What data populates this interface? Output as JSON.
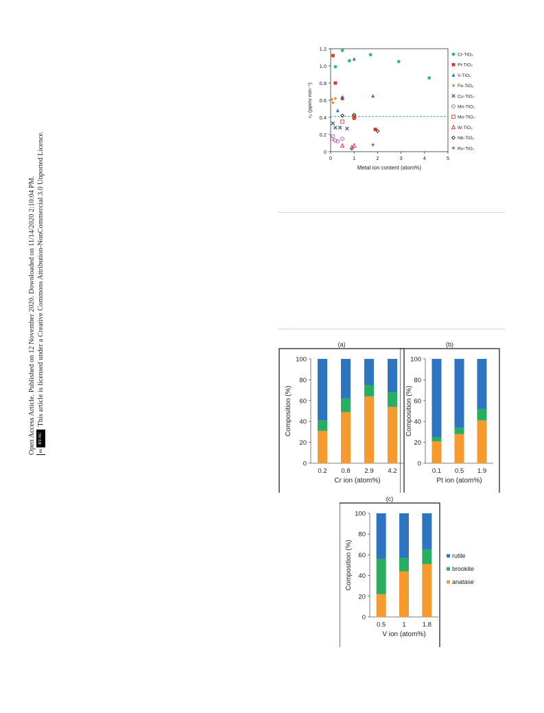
{
  "margin": {
    "line1": "Open Access Article. Published on 12 November 2020. Downloaded on 11/14/2020 2:10:04 PM.",
    "line2": "This article is licensed under a Creative Commons Attribution-NonCommercial 3.0 Unported Licence.",
    "badge_cc": "cc",
    "badge_by": "BY-NC"
  },
  "chart_data": [
    {
      "type": "scatter",
      "xlabel": "Metal ion content (atom%)",
      "ylabel": "r₀ (ppmv min⁻¹)",
      "xlim": [
        0,
        5
      ],
      "ylim": [
        0,
        1.2
      ],
      "xticks": [
        "0",
        "1",
        "2",
        "3",
        "4",
        "5"
      ],
      "yticks": [
        "0",
        "0.2",
        "0.4",
        "0.6",
        "0.8",
        "1.0",
        "1.2"
      ],
      "reference_line": 0.41,
      "legend_position": "right",
      "series": [
        {
          "name": "Cr-TiO₂",
          "color": "#2dbd74",
          "marker": "circle",
          "points": [
            [
              0.2,
              0.99
            ],
            [
              0.5,
              1.18
            ],
            [
              0.8,
              1.06
            ],
            [
              1.7,
              1.13
            ],
            [
              2.9,
              1.05
            ],
            [
              4.2,
              0.86
            ]
          ]
        },
        {
          "name": "Pt-TiO₂",
          "color": "#e8312a",
          "marker": "square",
          "points": [
            [
              0.1,
              1.12
            ],
            [
              0.2,
              0.8
            ],
            [
              0.5,
              0.62
            ],
            [
              1.0,
              0.39
            ],
            [
              1.9,
              0.26
            ]
          ]
        },
        {
          "name": "V-TiO₂",
          "color": "#2f6bbf",
          "marker": "triangle",
          "points": [
            [
              0.3,
              0.48
            ],
            [
              0.5,
              0.64
            ],
            [
              1.0,
              1.08
            ],
            [
              1.8,
              0.65
            ]
          ]
        },
        {
          "name": "Fe-TiO₂",
          "color": "#f18a2a",
          "marker": "diamond",
          "points": [
            [
              0.05,
              0.61
            ],
            [
              0.1,
              0.57
            ],
            [
              0.2,
              0.62
            ]
          ]
        },
        {
          "name": "Cu-TiO₂",
          "color": "#3a5578",
          "marker": "cross",
          "points": [
            [
              0.1,
              0.33
            ],
            [
              0.2,
              0.28
            ],
            [
              0.4,
              0.28
            ],
            [
              0.7,
              0.27
            ]
          ]
        },
        {
          "name": "Mn-TiO₂",
          "color": "#b15ac4",
          "marker": "circle-open",
          "points": [
            [
              0.05,
              0.15
            ],
            [
              0.1,
              0.18
            ],
            [
              0.2,
              0.13
            ],
            [
              0.3,
              0.12
            ],
            [
              0.5,
              0.15
            ]
          ]
        },
        {
          "name": "Mo-TiO₂",
          "color": "#d9541e",
          "marker": "square-open",
          "points": [
            [
              0.5,
              0.35
            ],
            [
              1.0,
              0.41
            ]
          ]
        },
        {
          "name": "W-TiO₂",
          "color": "#e8312a",
          "marker": "triangle-open",
          "points": [
            [
              0.5,
              0.07
            ],
            [
              0.9,
              0.05
            ],
            [
              1.0,
              0.07
            ]
          ]
        },
        {
          "name": "Nb-TiO₂",
          "color": "#333333",
          "marker": "diamond-open",
          "points": [
            [
              0.5,
              0.42
            ],
            [
              1.0,
              0.43
            ],
            [
              2.0,
              0.24
            ]
          ]
        },
        {
          "name": "Ru-TiO₂",
          "color": "#6a4fa3",
          "marker": "plus",
          "points": [
            [
              0.9,
              0.03
            ],
            [
              1.8,
              0.08
            ]
          ]
        }
      ]
    },
    {
      "type": "bar",
      "subtype": "stacked",
      "title": "(a)",
      "xlabel": "Cr ion (atom%)",
      "ylabel": "Composition (%)",
      "ylim": [
        0,
        100
      ],
      "yticks": [
        "0",
        "20",
        "40",
        "60",
        "80",
        "100"
      ],
      "categories": [
        "0.2",
        "0.8",
        "2.9",
        "4.2"
      ],
      "series": [
        {
          "name": "anatase",
          "color": "#f59a2e",
          "values": [
            31,
            49,
            64,
            54
          ]
        },
        {
          "name": "brookite",
          "color": "#27ae60",
          "values": [
            10,
            13,
            11,
            14
          ]
        },
        {
          "name": "rutile",
          "color": "#2d75c0",
          "values": [
            59,
            38,
            25,
            32
          ]
        }
      ]
    },
    {
      "type": "bar",
      "subtype": "stacked",
      "title": "(b)",
      "xlabel": "Pt ion (atom%)",
      "ylabel": "Composition (%)",
      "ylim": [
        0,
        100
      ],
      "yticks": [
        "0",
        "20",
        "40",
        "60",
        "80",
        "100"
      ],
      "categories": [
        "0.1",
        "0.5",
        "1.9"
      ],
      "series": [
        {
          "name": "anatase",
          "color": "#f59a2e",
          "values": [
            21,
            28,
            41
          ]
        },
        {
          "name": "brookite",
          "color": "#27ae60",
          "values": [
            4,
            6,
            11
          ]
        },
        {
          "name": "rutile",
          "color": "#2d75c0",
          "values": [
            75,
            66,
            48
          ]
        }
      ]
    },
    {
      "type": "bar",
      "subtype": "stacked",
      "title": "(c)",
      "xlabel": "V ion (atom%)",
      "ylabel": "Composition (%)",
      "ylim": [
        0,
        100
      ],
      "yticks": [
        "0",
        "20",
        "40",
        "60",
        "80",
        "100"
      ],
      "categories": [
        "0.5",
        "1",
        "1.8"
      ],
      "legend_position": "right",
      "series": [
        {
          "name": "anatase",
          "color": "#f59a2e",
          "values": [
            22,
            44,
            51
          ]
        },
        {
          "name": "brookite",
          "color": "#27ae60",
          "values": [
            34,
            13,
            14
          ]
        },
        {
          "name": "rutile",
          "color": "#2d75c0",
          "values": [
            44,
            43,
            35
          ]
        }
      ]
    }
  ]
}
